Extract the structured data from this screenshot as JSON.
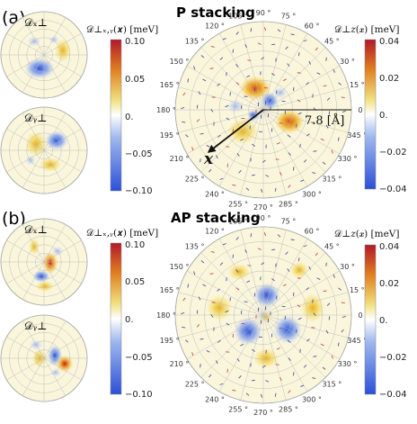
{
  "panels": [
    {
      "label": "(a)",
      "title": "P stacking",
      "small_plots": [
        "𝒟ₓ⊥",
        "𝒟ᵧ⊥"
      ],
      "colorbar_left": {
        "label": "𝒟⊥ₓ,ᵧ(𝒙) [meV]",
        "ticks": [
          "0.10",
          "0.05",
          "0.",
          "−0.05",
          "−0.10"
        ]
      },
      "colorbar_right": {
        "label": "𝒟⊥𝑧(𝒙) [meV]",
        "ticks": [
          "0.04",
          "0.02",
          "0.",
          "−0.02",
          "−0.04"
        ]
      },
      "radius_label": "7.8 [Å]",
      "axis_label": "𝒙"
    },
    {
      "label": "(b)",
      "title": "AP stacking",
      "small_plots": [
        "𝒟ₓ⊥",
        "𝒟ᵧ⊥"
      ],
      "colorbar_left": {
        "label": "𝒟⊥ₓ,ᵧ(𝒙) [meV]",
        "ticks": [
          "0.10",
          "0.05",
          "0.",
          "−0.05",
          "−0.10"
        ]
      },
      "colorbar_right": {
        "label": "𝒟⊥𝑧(𝒙) [meV]",
        "ticks": [
          "0.04",
          "0.02",
          "0.",
          "−0.02",
          "−0.04"
        ]
      }
    }
  ],
  "angle_labels": [
    "0",
    "15 °",
    "30 °",
    "45 °",
    "60 °",
    "75 °",
    "90 °",
    "105 °",
    "120 °",
    "135 °",
    "150 °",
    "165 °",
    "180 °",
    "195 °",
    "210 °",
    "225 °",
    "240 °",
    "255 °",
    "270 °",
    "285 °",
    "300 °",
    "315 °",
    "330 °",
    "345 °"
  ],
  "colors": {
    "background": "#faf6dc",
    "grid": "#bdbdbd",
    "positive": "#e8a020",
    "negative": "#3a62d8",
    "arrow": "#5050a0"
  }
}
